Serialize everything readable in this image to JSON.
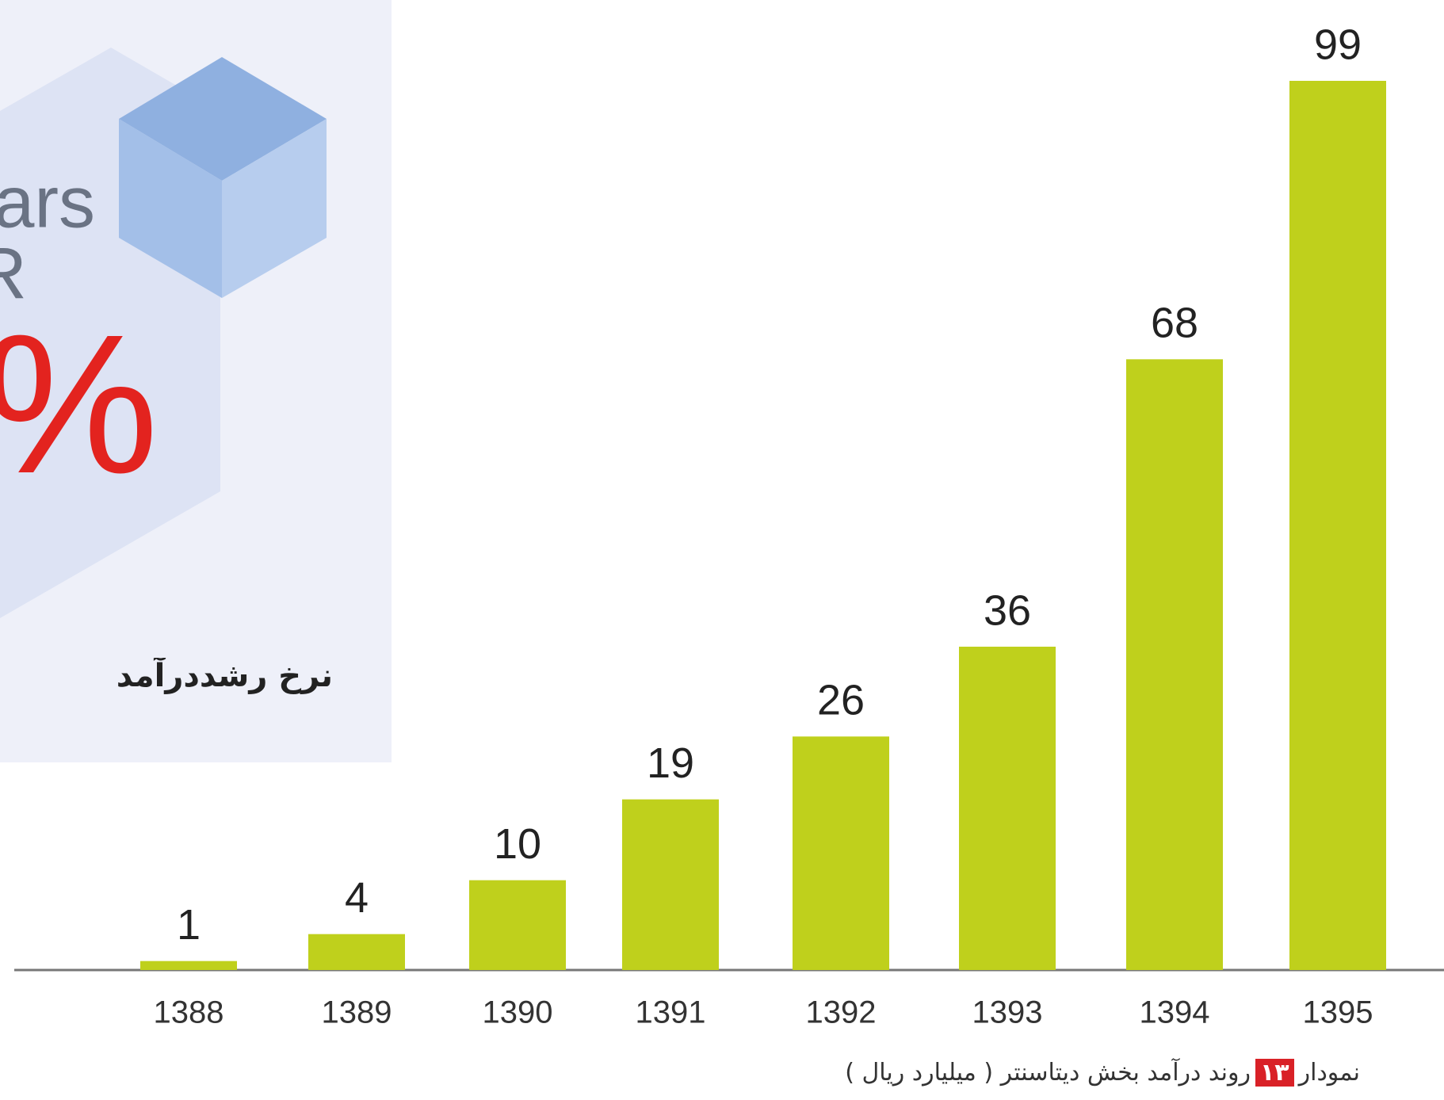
{
  "panel": {
    "line1": "ars",
    "line2": "R",
    "big": "0%",
    "caption": "نرخ رشددرآمد"
  },
  "chart_data": {
    "type": "bar",
    "categories": [
      "1388",
      "1389",
      "1390",
      "1391",
      "1392",
      "1393",
      "1394",
      "1395"
    ],
    "values": [
      1,
      4,
      10,
      19,
      26,
      36,
      68,
      99
    ],
    "color": "#bfd01c",
    "caption": {
      "prefix": "نمودار",
      "number": "۱۳",
      "text": "روند درآمد بخش دیتاسنتر ( میلیارد ریال )"
    }
  }
}
